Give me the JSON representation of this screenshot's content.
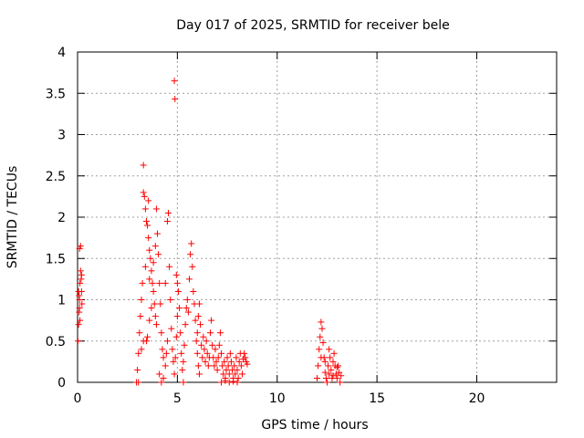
{
  "chart_data": {
    "type": "scatter",
    "title": "Day 017 of 2025, SRMTID for receiver bele",
    "xlabel": "GPS time / hours",
    "ylabel": "SRMTID / TECUs",
    "xlim": [
      0,
      24
    ],
    "ylim": [
      0,
      4
    ],
    "xticks": [
      0,
      5,
      10,
      15,
      20
    ],
    "xtick_labels": [
      "0",
      "5",
      "10",
      "15",
      "20"
    ],
    "yticks": [
      0,
      0.5,
      1,
      1.5,
      2,
      2.5,
      3,
      3.5,
      4
    ],
    "ytick_labels": [
      "0",
      "0.5",
      "1",
      "1.5",
      "2",
      "2.5",
      "3",
      "3.5",
      "4"
    ],
    "grid": true,
    "marker": "+",
    "series": [
      {
        "name": "SRMTID",
        "color": "#ff0000",
        "points": [
          [
            0.02,
            0.5
          ],
          [
            0.05,
            0.7
          ],
          [
            0.08,
            0.85
          ],
          [
            0.1,
            1.0
          ],
          [
            0.12,
            1.2
          ],
          [
            0.15,
            1.35
          ],
          [
            0.05,
            1.1
          ],
          [
            0.1,
            1.62
          ],
          [
            0.15,
            1.65
          ],
          [
            0.18,
            1.25
          ],
          [
            0.2,
            1.1
          ],
          [
            0.22,
            0.95
          ],
          [
            0.1,
            0.9
          ],
          [
            0.08,
            1.05
          ],
          [
            0.2,
            1.3
          ],
          [
            0.12,
            0.75
          ],
          [
            2.95,
            0.0
          ],
          [
            3.05,
            0.0
          ],
          [
            3.0,
            0.15
          ],
          [
            3.05,
            0.35
          ],
          [
            3.1,
            0.6
          ],
          [
            3.15,
            0.8
          ],
          [
            3.2,
            1.0
          ],
          [
            3.25,
            1.2
          ],
          [
            3.3,
            2.63
          ],
          [
            3.3,
            2.3
          ],
          [
            3.35,
            2.25
          ],
          [
            3.4,
            2.1
          ],
          [
            3.45,
            1.95
          ],
          [
            3.5,
            1.9
          ],
          [
            3.55,
            1.75
          ],
          [
            3.55,
            2.2
          ],
          [
            3.6,
            1.6
          ],
          [
            3.65,
            1.5
          ],
          [
            3.7,
            1.35
          ],
          [
            3.75,
            1.2
          ],
          [
            3.8,
            1.1
          ],
          [
            3.85,
            0.95
          ],
          [
            3.9,
            0.8
          ],
          [
            3.95,
            0.7
          ],
          [
            3.45,
            0.5
          ],
          [
            3.5,
            0.55
          ],
          [
            3.6,
            0.75
          ],
          [
            3.7,
            0.9
          ],
          [
            3.2,
            0.4
          ],
          [
            3.3,
            0.5
          ],
          [
            3.4,
            1.4
          ],
          [
            3.6,
            1.25
          ],
          [
            3.8,
            1.45
          ],
          [
            3.9,
            1.65
          ],
          [
            3.95,
            2.1
          ],
          [
            4.0,
            1.8
          ],
          [
            4.05,
            1.55
          ],
          [
            4.1,
            1.2
          ],
          [
            4.15,
            0.95
          ],
          [
            4.2,
            0.6
          ],
          [
            4.25,
            0.4
          ],
          [
            4.3,
            0.3
          ],
          [
            4.1,
            0.1
          ],
          [
            4.2,
            0.0
          ],
          [
            4.3,
            0.05
          ],
          [
            4.4,
            0.2
          ],
          [
            4.45,
            0.35
          ],
          [
            4.5,
            0.5
          ],
          [
            4.4,
            1.2
          ],
          [
            4.5,
            1.95
          ],
          [
            4.55,
            2.05
          ],
          [
            4.6,
            1.4
          ],
          [
            4.65,
            1.0
          ],
          [
            4.7,
            0.65
          ],
          [
            4.75,
            0.4
          ],
          [
            4.8,
            0.25
          ],
          [
            4.85,
            3.65
          ],
          [
            4.88,
            3.43
          ],
          [
            4.85,
            0.1
          ],
          [
            4.9,
            0.3
          ],
          [
            4.95,
            0.55
          ],
          [
            5.0,
            0.8
          ],
          [
            5.05,
            1.1
          ],
          [
            4.95,
            1.3
          ],
          [
            5.0,
            1.2
          ],
          [
            5.1,
            0.9
          ],
          [
            5.15,
            0.6
          ],
          [
            5.2,
            0.35
          ],
          [
            5.25,
            0.15
          ],
          [
            5.3,
            0.0
          ],
          [
            5.3,
            0.25
          ],
          [
            5.35,
            0.45
          ],
          [
            5.4,
            0.7
          ],
          [
            5.45,
            0.9
          ],
          [
            5.5,
            1.0
          ],
          [
            5.55,
            0.85
          ],
          [
            5.6,
            1.25
          ],
          [
            5.65,
            1.55
          ],
          [
            5.7,
            1.68
          ],
          [
            5.75,
            1.4
          ],
          [
            5.8,
            1.1
          ],
          [
            5.85,
            0.95
          ],
          [
            5.9,
            0.75
          ],
          [
            5.95,
            0.5
          ],
          [
            6.0,
            0.35
          ],
          [
            6.05,
            0.2
          ],
          [
            6.1,
            0.1
          ],
          [
            6.0,
            0.6
          ],
          [
            6.05,
            0.8
          ],
          [
            6.1,
            0.95
          ],
          [
            6.15,
            0.7
          ],
          [
            6.2,
            0.45
          ],
          [
            6.25,
            0.3
          ],
          [
            6.3,
            0.55
          ],
          [
            6.35,
            0.4
          ],
          [
            6.4,
            0.25
          ],
          [
            6.45,
            0.5
          ],
          [
            6.5,
            0.35
          ],
          [
            6.55,
            0.2
          ],
          [
            6.6,
            0.3
          ],
          [
            6.65,
            0.6
          ],
          [
            6.7,
            0.75
          ],
          [
            6.75,
            0.45
          ],
          [
            6.8,
            0.3
          ],
          [
            6.85,
            0.2
          ],
          [
            6.9,
            0.4
          ],
          [
            6.95,
            0.25
          ],
          [
            7.0,
            0.15
          ],
          [
            7.05,
            0.3
          ],
          [
            7.1,
            0.45
          ],
          [
            7.15,
            0.6
          ],
          [
            7.2,
            0.35
          ],
          [
            7.25,
            0.2
          ],
          [
            7.3,
            0.1
          ],
          [
            7.35,
            0.25
          ],
          [
            7.4,
            0.05
          ],
          [
            7.45,
            0.15
          ],
          [
            7.5,
            0.3
          ],
          [
            7.55,
            0.2
          ],
          [
            7.6,
            0.1
          ],
          [
            7.65,
            0.35
          ],
          [
            7.7,
            0.25
          ],
          [
            7.75,
            0.15
          ],
          [
            7.8,
            0.05
          ],
          [
            7.85,
            0.2
          ],
          [
            7.9,
            0.1
          ],
          [
            7.95,
            0.3
          ],
          [
            8.0,
            0.15
          ],
          [
            8.05,
            0.05
          ],
          [
            8.1,
            0.25
          ],
          [
            8.15,
            0.35
          ],
          [
            8.2,
            0.2
          ],
          [
            8.25,
            0.1
          ],
          [
            8.3,
            0.28
          ],
          [
            8.35,
            0.35
          ],
          [
            8.4,
            0.3
          ],
          [
            8.45,
            0.25
          ],
          [
            8.5,
            0.22
          ],
          [
            7.2,
            0.0
          ],
          [
            7.4,
            0.02
          ],
          [
            7.6,
            0.0
          ],
          [
            7.8,
            0.01
          ],
          [
            8.0,
            0.0
          ],
          [
            12.0,
            0.05
          ],
          [
            12.05,
            0.2
          ],
          [
            12.1,
            0.4
          ],
          [
            12.15,
            0.55
          ],
          [
            12.2,
            0.73
          ],
          [
            12.25,
            0.65
          ],
          [
            12.3,
            0.48
          ],
          [
            12.35,
            0.3
          ],
          [
            12.4,
            0.12
          ],
          [
            12.45,
            0.05
          ],
          [
            12.5,
            0.0
          ],
          [
            12.55,
            0.2
          ],
          [
            12.6,
            0.4
          ],
          [
            12.65,
            0.3
          ],
          [
            12.7,
            0.15
          ],
          [
            12.75,
            0.05
          ],
          [
            12.8,
            0.25
          ],
          [
            12.85,
            0.35
          ],
          [
            12.9,
            0.2
          ],
          [
            12.95,
            0.1
          ],
          [
            13.0,
            0.05
          ],
          [
            13.05,
            0.2
          ],
          [
            13.1,
            0.12
          ],
          [
            13.15,
            0.0
          ],
          [
            13.2,
            0.08
          ],
          [
            12.2,
            0.3
          ],
          [
            12.4,
            0.25
          ],
          [
            12.6,
            0.1
          ],
          [
            12.8,
            0.08
          ],
          [
            13.0,
            0.18
          ]
        ]
      }
    ]
  }
}
